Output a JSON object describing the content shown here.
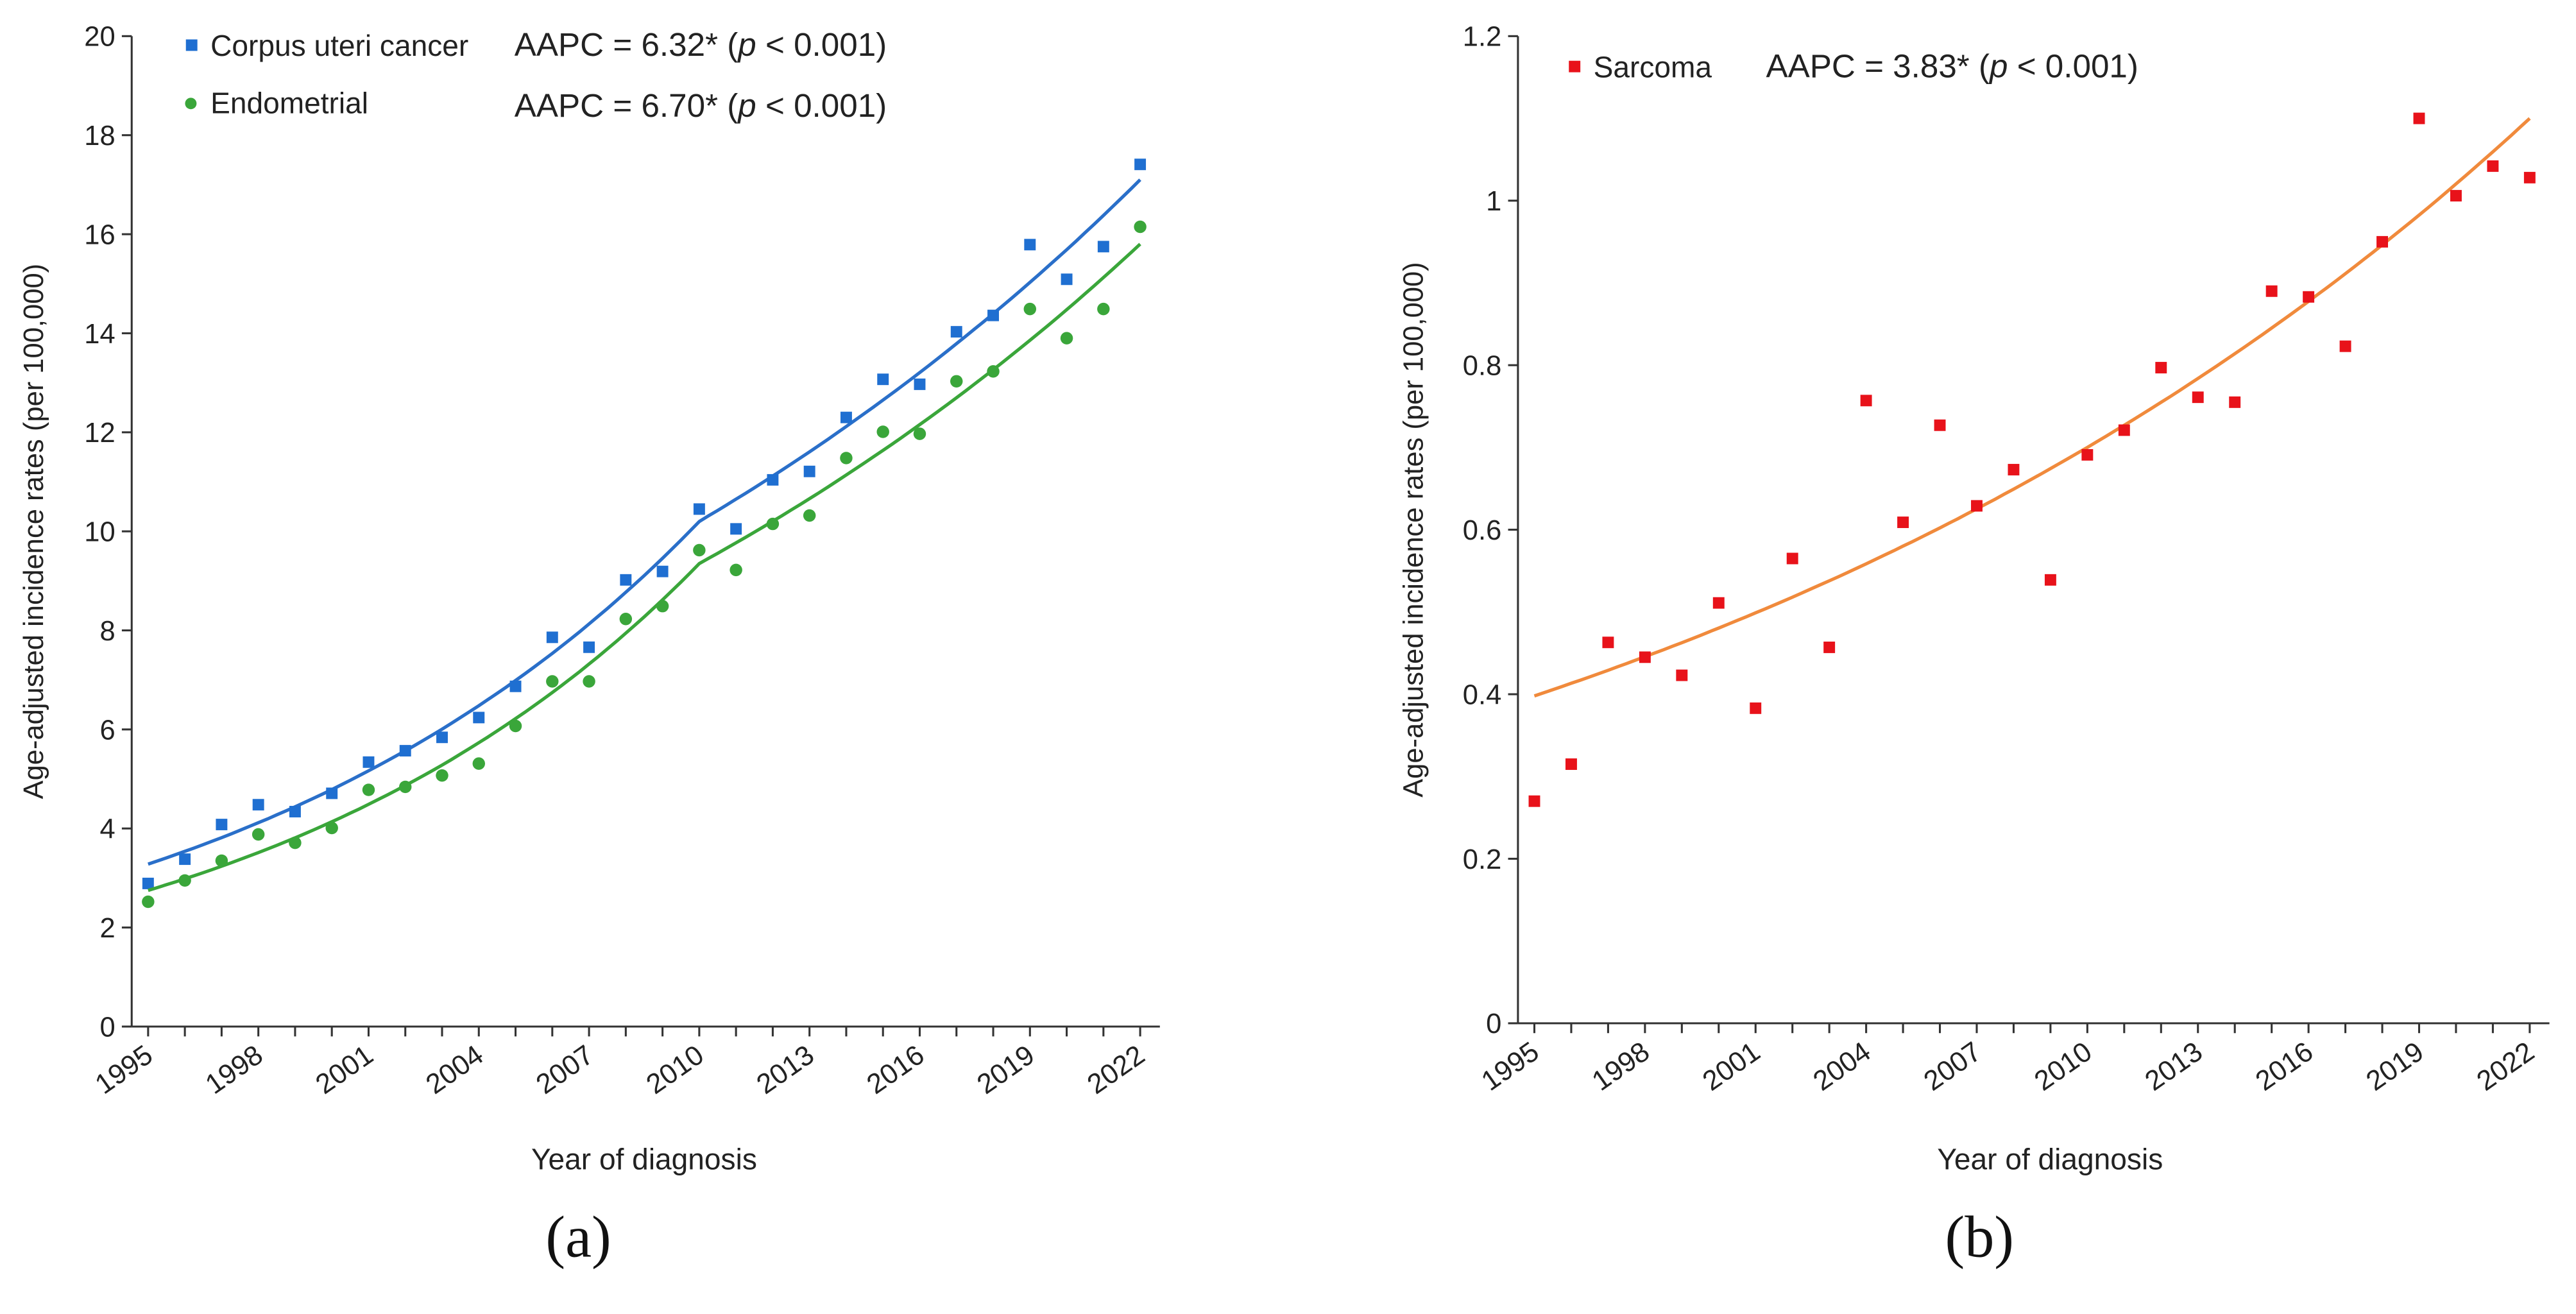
{
  "chart_data": [
    {
      "type": "scatter",
      "panel_label": "(a)",
      "xlabel": "Year of diagnosis",
      "ylabel": "Age-adjusted incidence rates (per 100,000)",
      "xlim": [
        1995,
        2022
      ],
      "ylim": [
        0,
        20
      ],
      "yticks": [
        0,
        2,
        4,
        6,
        8,
        10,
        12,
        14,
        16,
        18,
        20
      ],
      "xticks": [
        1995,
        1998,
        2001,
        2004,
        2007,
        2010,
        2013,
        2016,
        2019,
        2022
      ],
      "grid": false,
      "legend_position": "top-left",
      "x": [
        1995,
        1996,
        1997,
        1998,
        1999,
        2000,
        2001,
        2002,
        2003,
        2004,
        2005,
        2006,
        2007,
        2008,
        2009,
        2010,
        2011,
        2012,
        2013,
        2014,
        2015,
        2016,
        2017,
        2018,
        2019,
        2020,
        2021,
        2022
      ],
      "series": [
        {
          "name": "Corpus uteri cancer",
          "annotation": "AAPC = 6.32* (p < 0.001)",
          "aapc_prefix": "AAPC = 6.32* (",
          "aapc_p": "p",
          "aapc_suffix": " < 0.001)",
          "marker": "square",
          "color": "#1f6fd1",
          "line_color": "#2a6fc9",
          "values": [
            2.89,
            3.38,
            4.08,
            4.48,
            4.34,
            4.71,
            5.34,
            5.57,
            5.84,
            6.24,
            6.87,
            7.86,
            7.66,
            9.02,
            9.19,
            10.45,
            10.05,
            11.04,
            11.21,
            12.3,
            13.07,
            12.97,
            14.03,
            14.36,
            15.79,
            15.09,
            15.75,
            17.41
          ],
          "fit": {
            "joinpoint": 2010,
            "start": 3.28,
            "join": 10.2,
            "end": 17.1
          }
        },
        {
          "name": "Endometrial",
          "annotation": "AAPC = 6.70* (p < 0.001)",
          "aapc_prefix": "AAPC = 6.70* (",
          "aapc_p": "p",
          "aapc_suffix": " < 0.001)",
          "marker": "circle",
          "color": "#3aa63a",
          "line_color": "#3aa63a",
          "values": [
            2.52,
            2.95,
            3.35,
            3.88,
            3.71,
            4.01,
            4.78,
            4.84,
            5.07,
            5.31,
            6.07,
            6.97,
            6.97,
            8.23,
            8.49,
            9.62,
            9.22,
            10.15,
            10.32,
            11.48,
            12.01,
            11.97,
            13.03,
            13.23,
            14.49,
            13.9,
            14.49,
            16.15
          ],
          "fit": {
            "joinpoint": 2010,
            "start": 2.75,
            "join": 9.35,
            "end": 15.8
          }
        }
      ]
    },
    {
      "type": "scatter",
      "panel_label": "(b)",
      "xlabel": "Year of diagnosis",
      "ylabel": "Age-adjusted incidence rates (per 100,000)",
      "xlim": [
        1995,
        2022
      ],
      "ylim": [
        0,
        1.2
      ],
      "yticks": [
        0,
        0.2,
        0.4,
        0.6,
        0.8,
        1,
        1.2
      ],
      "xticks": [
        1995,
        1998,
        2001,
        2004,
        2007,
        2010,
        2013,
        2016,
        2019,
        2022
      ],
      "grid": false,
      "legend_position": "top-left",
      "x": [
        1995,
        1996,
        1997,
        1998,
        1999,
        2000,
        2001,
        2002,
        2003,
        2004,
        2005,
        2006,
        2007,
        2008,
        2009,
        2010,
        2011,
        2012,
        2013,
        2014,
        2015,
        2016,
        2017,
        2018,
        2019,
        2020,
        2021,
        2022
      ],
      "series": [
        {
          "name": "Sarcoma",
          "annotation": "AAPC = 3.83* (p < 0.001)",
          "aapc_prefix": "AAPC = 3.83* (",
          "aapc_p": "p",
          "aapc_suffix": " < 0.001)",
          "marker": "square",
          "color": "#e8121a",
          "line_color": "#f08a3c",
          "values": [
            0.27,
            0.315,
            0.463,
            0.445,
            0.423,
            0.511,
            0.383,
            0.565,
            0.457,
            0.757,
            0.609,
            0.727,
            0.629,
            0.673,
            0.539,
            0.691,
            0.721,
            0.797,
            0.761,
            0.755,
            0.89,
            0.883,
            0.823,
            0.95,
            1.1,
            1.006,
            1.042,
            1.028
          ],
          "fit": {
            "start": 0.398,
            "end": 1.1
          }
        }
      ]
    }
  ]
}
